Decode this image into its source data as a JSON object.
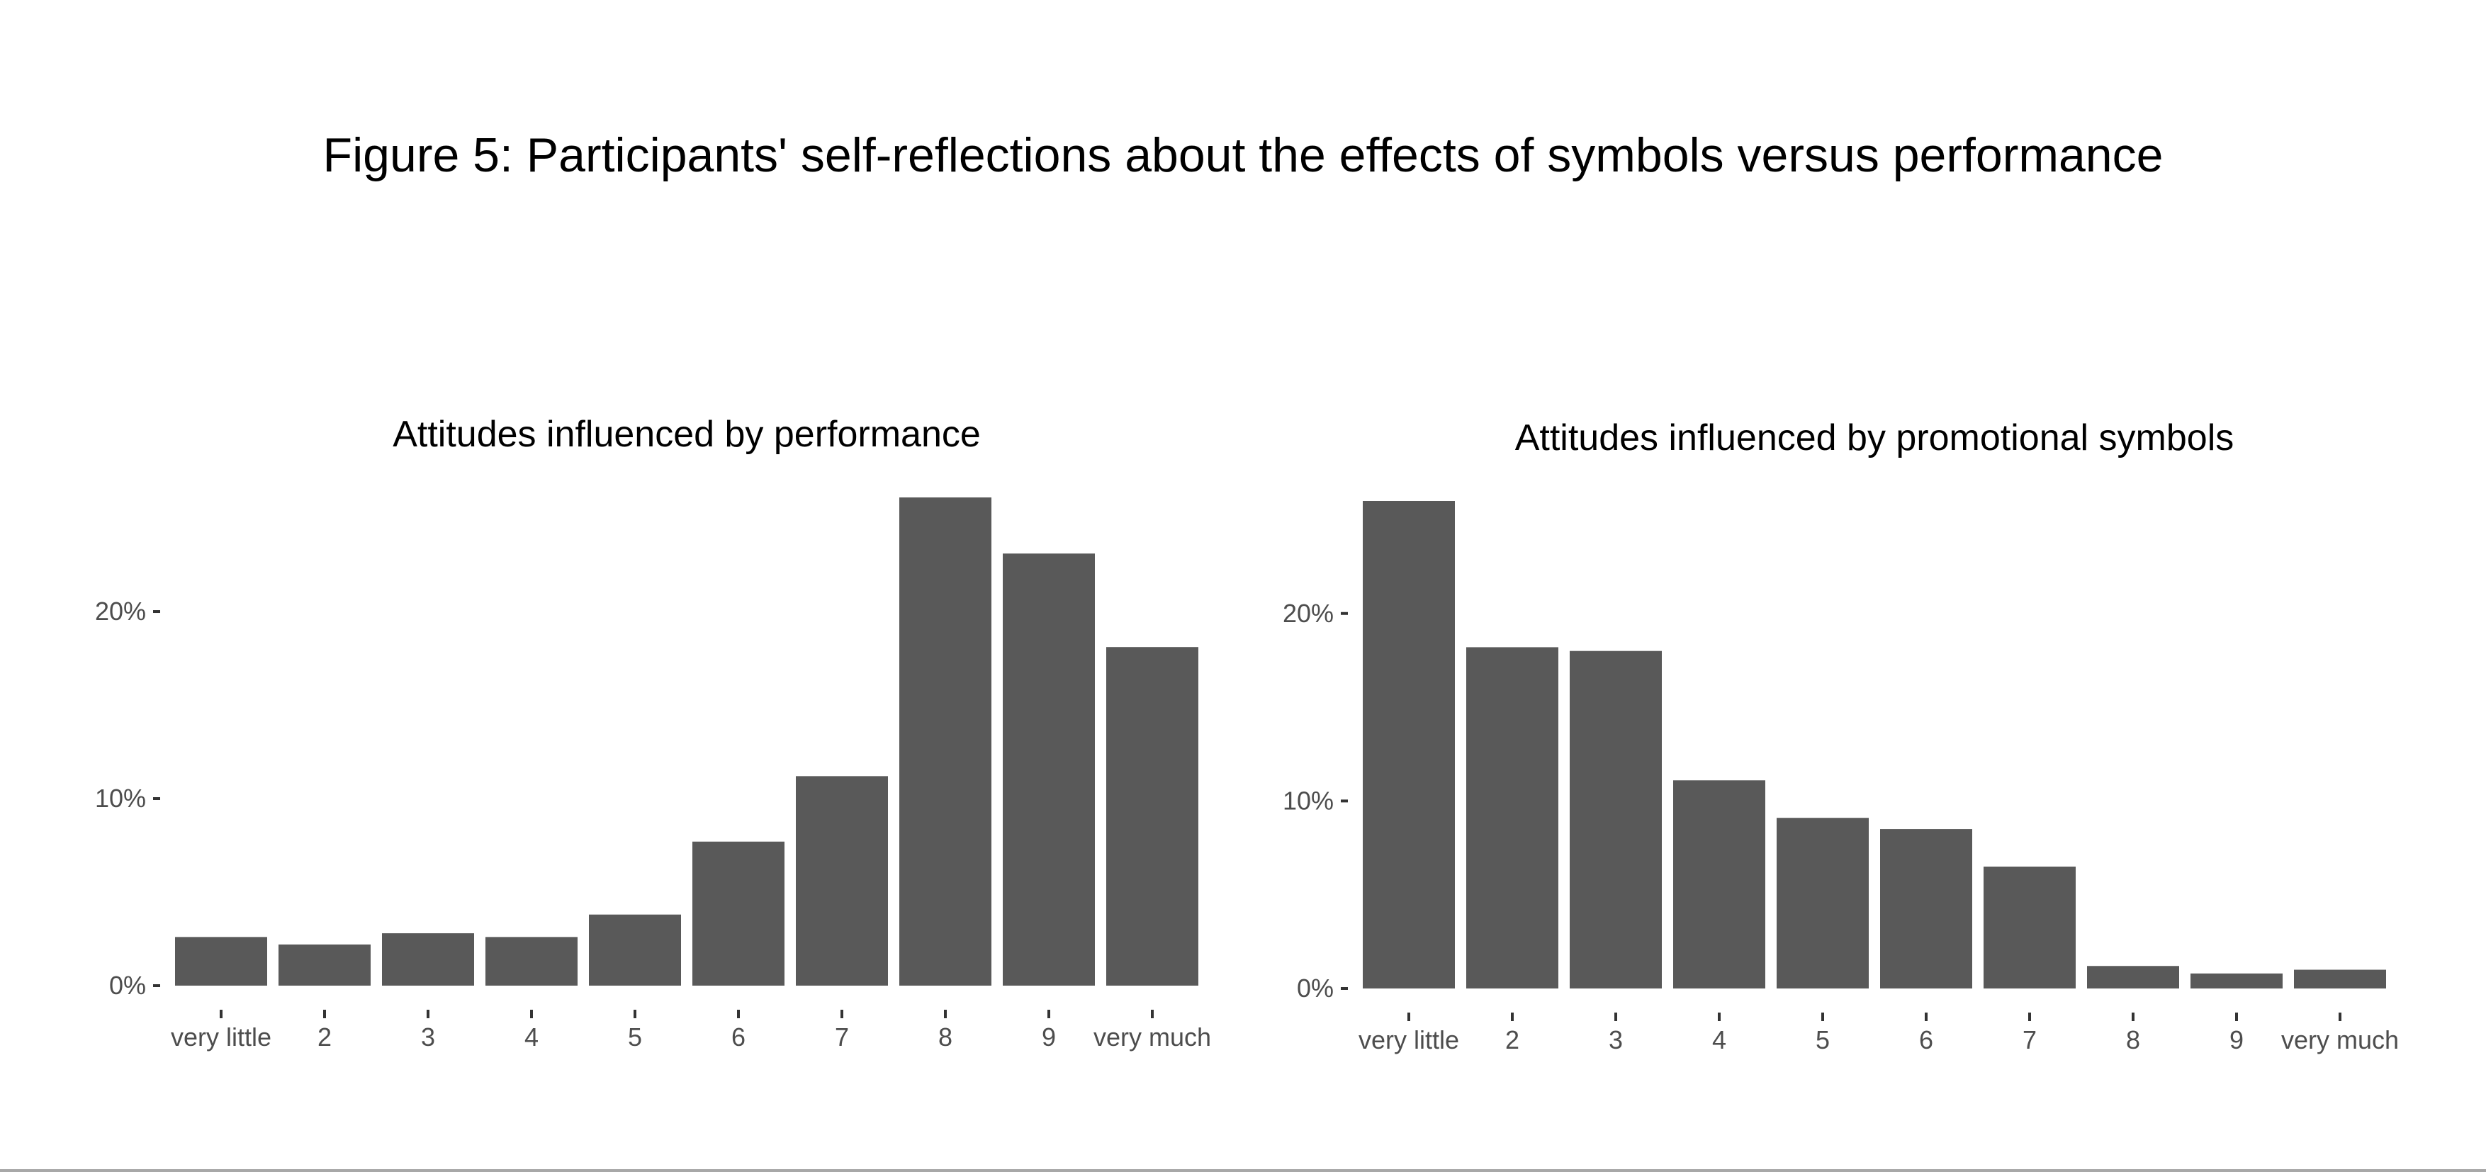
{
  "figure": {
    "title": "Figure 5: Participants' self-reflections about the effects of symbols versus performance"
  },
  "colors": {
    "bar": "#595959",
    "tick_label": "#4d4d4d",
    "background": "#ffffff"
  },
  "chart_data": [
    {
      "type": "bar",
      "title": "Attitudes influenced by performance",
      "xlabel": "",
      "ylabel": "",
      "categories": [
        "very little",
        "2",
        "3",
        "4",
        "5",
        "6",
        "7",
        "8",
        "9",
        "very much"
      ],
      "values": [
        2.6,
        2.2,
        2.8,
        2.6,
        3.8,
        7.7,
        11.2,
        26.1,
        23.1,
        18.1
      ],
      "y_ticks": [
        0,
        10,
        20
      ],
      "y_tick_labels": [
        "0%",
        "10%",
        "20%"
      ],
      "ylim": [
        0,
        26.1
      ],
      "grid": false,
      "legend": "none"
    },
    {
      "type": "bar",
      "title": "Attitudes influenced by promotional symbols",
      "xlabel": "",
      "ylabel": "",
      "categories": [
        "very little",
        "2",
        "3",
        "4",
        "5",
        "6",
        "7",
        "8",
        "9",
        "very much"
      ],
      "values": [
        26.0,
        18.2,
        18.0,
        11.1,
        9.1,
        8.5,
        6.5,
        1.2,
        0.8,
        1.0
      ],
      "y_ticks": [
        0,
        10,
        20
      ],
      "y_tick_labels": [
        "0%",
        "10%",
        "20%"
      ],
      "ylim": [
        0,
        26.0
      ],
      "grid": false,
      "legend": "none"
    }
  ]
}
